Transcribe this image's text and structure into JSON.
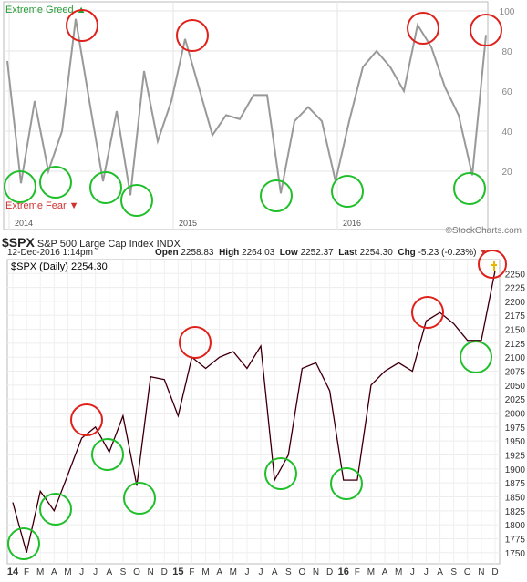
{
  "colors": {
    "greed": "#2a9d3a",
    "fear": "#cc3333",
    "sentiment_line": "#999999",
    "price_line": "#000000",
    "price_down": "#b3143c",
    "red_circle": "#e0201a",
    "green_circle": "#1fbf2a"
  },
  "top_panel": {
    "greed_label": "Extreme Greed ▲",
    "fear_label": "Extreme Fear ▼",
    "ytick_labels": [
      "100",
      "80",
      "60",
      "40",
      "20"
    ],
    "year_labels": [
      "2014",
      "2015",
      "2016"
    ],
    "watermark": "©StockCharts.com"
  },
  "header": {
    "symbol": "$SPX",
    "name": "S&P 500 Large Cap Index",
    "exchange": "INDX",
    "datetime": "12-Dec-2016 1:14pm",
    "open_label": "Open",
    "open": "2258.83",
    "high_label": "High",
    "high": "2264.03",
    "low_label": "Low",
    "low": "2252.37",
    "last_label": "Last",
    "last": "2254.30",
    "chg_label": "Chg",
    "chg": "-5.23 (-0.23%)"
  },
  "bottom_panel": {
    "legend": "$SPX (Daily) 2254.30",
    "ytick_labels": [
      "2250",
      "2225",
      "2200",
      "2175",
      "2150",
      "2125",
      "2100",
      "2075",
      "2050",
      "2025",
      "2000",
      "1975",
      "1950",
      "1925",
      "1900",
      "1875",
      "1850",
      "1825",
      "1800",
      "1775",
      "1750"
    ],
    "xtick_labels": [
      "14",
      "F",
      "M",
      "A",
      "M",
      "J",
      "J",
      "A",
      "S",
      "O",
      "N",
      "D",
      "15",
      "F",
      "M",
      "A",
      "M",
      "J",
      "J",
      "A",
      "S",
      "O",
      "N",
      "D",
      "16",
      "F",
      "M",
      "A",
      "M",
      "J",
      "J",
      "A",
      "S",
      "O",
      "N",
      "D"
    ]
  },
  "chart_data": [
    {
      "type": "line",
      "x": [
        "2014-01",
        "2014-02",
        "2014-03",
        "2014-04",
        "2014-05",
        "2014-06",
        "2014-07",
        "2014-08",
        "2014-09",
        "2014-10",
        "2014-11",
        "2014-12",
        "2015-01",
        "2015-02",
        "2015-03",
        "2015-04",
        "2015-05",
        "2015-06",
        "2015-07",
        "2015-08",
        "2015-09",
        "2015-10",
        "2015-11",
        "2015-12",
        "2016-01",
        "2016-02",
        "2016-03",
        "2016-04",
        "2016-05",
        "2016-06",
        "2016-07",
        "2016-08",
        "2016-09",
        "2016-10",
        "2016-11",
        "2016-12"
      ],
      "series": [
        {
          "values": [
            75,
            14,
            55,
            20,
            40,
            96,
            55,
            15,
            50,
            8,
            70,
            35,
            55,
            86,
            62,
            38,
            48,
            46,
            58,
            58,
            9,
            45,
            52,
            45,
            15,
            45,
            72,
            80,
            72,
            60,
            93,
            82,
            62,
            48,
            18,
            88
          ]
        }
      ],
      "ylim": [
        0,
        100
      ],
      "grid": true,
      "annotations": [
        "Extreme Greed",
        "Extreme Fear"
      ]
    },
    {
      "type": "line",
      "x": [
        "2014-01",
        "2014-02",
        "2014-03",
        "2014-04",
        "2014-05",
        "2014-06",
        "2014-07",
        "2014-08",
        "2014-09",
        "2014-10",
        "2014-11",
        "2014-12",
        "2015-01",
        "2015-02",
        "2015-03",
        "2015-04",
        "2015-05",
        "2015-06",
        "2015-07",
        "2015-08",
        "2015-09",
        "2015-10",
        "2015-11",
        "2015-12",
        "2016-01",
        "2016-02",
        "2016-03",
        "2016-04",
        "2016-05",
        "2016-06",
        "2016-07",
        "2016-08",
        "2016-09",
        "2016-10",
        "2016-11",
        "2016-12"
      ],
      "series": [
        {
          "name": "$SPX (Daily)",
          "values": [
            1840,
            1750,
            1860,
            1825,
            1890,
            1955,
            1975,
            1930,
            1995,
            1870,
            2065,
            2060,
            1995,
            2100,
            2080,
            2100,
            2110,
            2080,
            2120,
            1880,
            1925,
            2080,
            2090,
            2040,
            1880,
            1880,
            2050,
            2075,
            2090,
            2075,
            2165,
            2180,
            2160,
            2130,
            2130,
            2255
          ]
        }
      ],
      "ylim": [
        1735,
        2270
      ],
      "grid": true
    }
  ]
}
